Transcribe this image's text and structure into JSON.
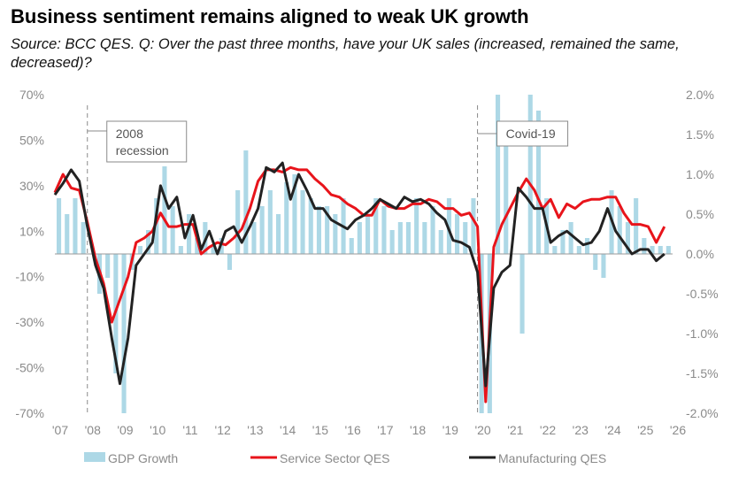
{
  "title": "Business sentiment remains aligned to weak UK growth",
  "subtitle": "Source: BCC QES. Q: Over the past three months, have your UK sales (increased, remained the same, decreased)?",
  "chart_data": {
    "type": "line",
    "y_left": {
      "range": [
        -70,
        70
      ],
      "unit": "%",
      "ticks": [
        "70%",
        "50%",
        "30%",
        "10%",
        "-10%",
        "-30%",
        "-50%",
        "-70%"
      ]
    },
    "y_right": {
      "range": [
        -2.0,
        2.0
      ],
      "unit": "%",
      "ticks": [
        "2.0%",
        "1.5%",
        "1.0%",
        "0.5%",
        "0.0%",
        "-0.5%",
        "-1.0%",
        "-1.5%",
        "-2.0%"
      ]
    },
    "x_ticks": [
      "'07",
      "'08",
      "'09",
      "'10",
      "'11",
      "'12",
      "'13",
      "'14",
      "'15",
      "'16",
      "'17",
      "'18",
      "'19",
      "'20",
      "'21",
      "'22",
      "'23",
      "'24",
      "'25",
      "'26"
    ],
    "annotations": [
      {
        "label_lines": [
          "2008",
          "recession"
        ],
        "x": 2008.0
      },
      {
        "label_lines": [
          "Covid-19"
        ],
        "x": 2020.0
      }
    ],
    "series": [
      {
        "name": "GDP Growth",
        "type": "bar",
        "axis": "right",
        "color": "#add8e6",
        "x": [
          2007.0,
          2007.25,
          2007.5,
          2007.75,
          2008.0,
          2008.25,
          2008.5,
          2008.75,
          2009.0,
          2009.25,
          2009.5,
          2009.75,
          2010.0,
          2010.25,
          2010.5,
          2010.75,
          2011.0,
          2011.25,
          2011.5,
          2011.75,
          2012.0,
          2012.25,
          2012.5,
          2012.75,
          2013.0,
          2013.25,
          2013.5,
          2013.75,
          2014.0,
          2014.25,
          2014.5,
          2014.75,
          2015.0,
          2015.25,
          2015.5,
          2015.75,
          2016.0,
          2016.25,
          2016.5,
          2016.75,
          2017.0,
          2017.25,
          2017.5,
          2017.75,
          2018.0,
          2018.25,
          2018.5,
          2018.75,
          2019.0,
          2019.25,
          2019.5,
          2019.75,
          2020.0,
          2020.25,
          2020.5,
          2020.75,
          2021.0,
          2021.25,
          2021.5,
          2021.75,
          2022.0,
          2022.25,
          2022.5,
          2022.75,
          2023.0,
          2023.25,
          2023.5,
          2023.75,
          2024.0,
          2024.25,
          2024.5,
          2024.75,
          2025.0,
          2025.25,
          2025.5,
          2025.75
        ],
        "values": [
          0.7,
          0.5,
          0.7,
          0.4,
          0.0,
          -0.5,
          -0.3,
          -1.5,
          -2.0,
          -0.2,
          0.1,
          0.3,
          0.7,
          1.1,
          0.6,
          0.1,
          0.5,
          0.2,
          0.4,
          0.1,
          0.2,
          -0.2,
          0.8,
          1.3,
          0.4,
          0.6,
          0.8,
          0.5,
          0.9,
          1.0,
          0.8,
          0.7,
          0.6,
          0.6,
          0.5,
          0.7,
          0.2,
          0.4,
          0.5,
          0.7,
          0.6,
          0.3,
          0.4,
          0.4,
          0.7,
          0.4,
          0.6,
          0.3,
          0.7,
          0.5,
          0.4,
          0.7,
          -2.0,
          -2.0,
          2.0,
          1.5,
          0.0,
          -1.0,
          2.0,
          1.8,
          0.7,
          0.1,
          0.3,
          0.4,
          0.1,
          0.2,
          -0.2,
          -0.3,
          0.8,
          0.6,
          0.4,
          0.7,
          0.2,
          0.1,
          0.1,
          0.1
        ]
      },
      {
        "name": "Service Sector QES",
        "type": "line",
        "axis": "left",
        "color": "#e8141b",
        "x": [
          2007.0,
          2007.25,
          2007.5,
          2007.75,
          2008.0,
          2008.25,
          2008.5,
          2008.75,
          2009.0,
          2009.25,
          2009.5,
          2009.75,
          2010.0,
          2010.25,
          2010.5,
          2010.75,
          2011.0,
          2011.25,
          2011.5,
          2011.75,
          2012.0,
          2012.25,
          2012.5,
          2012.75,
          2013.0,
          2013.25,
          2013.5,
          2013.75,
          2014.0,
          2014.25,
          2014.5,
          2014.75,
          2015.0,
          2015.25,
          2015.5,
          2015.75,
          2016.0,
          2016.25,
          2016.5,
          2016.75,
          2017.0,
          2017.25,
          2017.5,
          2017.75,
          2018.0,
          2018.25,
          2018.5,
          2018.75,
          2019.0,
          2019.25,
          2019.5,
          2019.75,
          2020.0,
          2020.25,
          2020.5,
          2020.75,
          2021.0,
          2021.25,
          2021.5,
          2021.75,
          2022.0,
          2022.25,
          2022.5,
          2022.75,
          2023.0,
          2023.25,
          2023.5,
          2023.75,
          2024.0,
          2024.25,
          2024.5,
          2024.75,
          2025.0,
          2025.25,
          2025.5,
          2025.75
        ],
        "values": [
          27,
          35,
          29,
          28,
          14,
          -2,
          -13,
          -30,
          -20,
          -10,
          5,
          7,
          10,
          18,
          12,
          12,
          13,
          13,
          0,
          3,
          5,
          4,
          7,
          11,
          20,
          32,
          37,
          37,
          36,
          38,
          37,
          37,
          33,
          30,
          26,
          25,
          22,
          20,
          17,
          17,
          24,
          21,
          20,
          20,
          22,
          22,
          24,
          23,
          20,
          20,
          17,
          18,
          12,
          -65,
          3,
          13,
          20,
          27,
          33,
          28,
          20,
          24,
          16,
          22,
          20,
          23,
          24,
          24,
          25,
          25,
          18,
          13,
          13,
          12,
          5,
          12
        ]
      },
      {
        "name": "Manufacturing QES",
        "type": "line",
        "axis": "left",
        "color": "#222222",
        "x": [
          2007.0,
          2007.25,
          2007.5,
          2007.75,
          2008.0,
          2008.25,
          2008.5,
          2008.75,
          2009.0,
          2009.25,
          2009.5,
          2009.75,
          2010.0,
          2010.25,
          2010.5,
          2010.75,
          2011.0,
          2011.25,
          2011.5,
          2011.75,
          2012.0,
          2012.25,
          2012.5,
          2012.75,
          2013.0,
          2013.25,
          2013.5,
          2013.75,
          2014.0,
          2014.25,
          2014.5,
          2014.75,
          2015.0,
          2015.25,
          2015.5,
          2015.75,
          2016.0,
          2016.25,
          2016.5,
          2016.75,
          2017.0,
          2017.25,
          2017.5,
          2017.75,
          2018.0,
          2018.25,
          2018.5,
          2018.75,
          2019.0,
          2019.25,
          2019.5,
          2019.75,
          2020.0,
          2020.25,
          2020.5,
          2020.75,
          2021.0,
          2021.25,
          2021.5,
          2021.75,
          2022.0,
          2022.25,
          2022.5,
          2022.75,
          2023.0,
          2023.25,
          2023.5,
          2023.75,
          2024.0,
          2024.25,
          2024.5,
          2024.75,
          2025.0,
          2025.25,
          2025.5,
          2025.75
        ],
        "values": [
          26,
          31,
          37,
          32,
          12,
          -5,
          -15,
          -37,
          -57,
          -37,
          -5,
          0,
          5,
          30,
          20,
          25,
          7,
          17,
          2,
          10,
          0,
          10,
          12,
          5,
          12,
          20,
          38,
          36,
          40,
          24,
          35,
          28,
          20,
          20,
          15,
          13,
          11,
          15,
          17,
          20,
          24,
          22,
          20,
          25,
          23,
          24,
          22,
          18,
          15,
          6,
          5,
          3,
          -8,
          -58,
          -15,
          -8,
          -5,
          29,
          25,
          20,
          20,
          5,
          8,
          10,
          7,
          4,
          5,
          10,
          20,
          10,
          5,
          0,
          2,
          2,
          -3,
          0
        ]
      }
    ]
  }
}
